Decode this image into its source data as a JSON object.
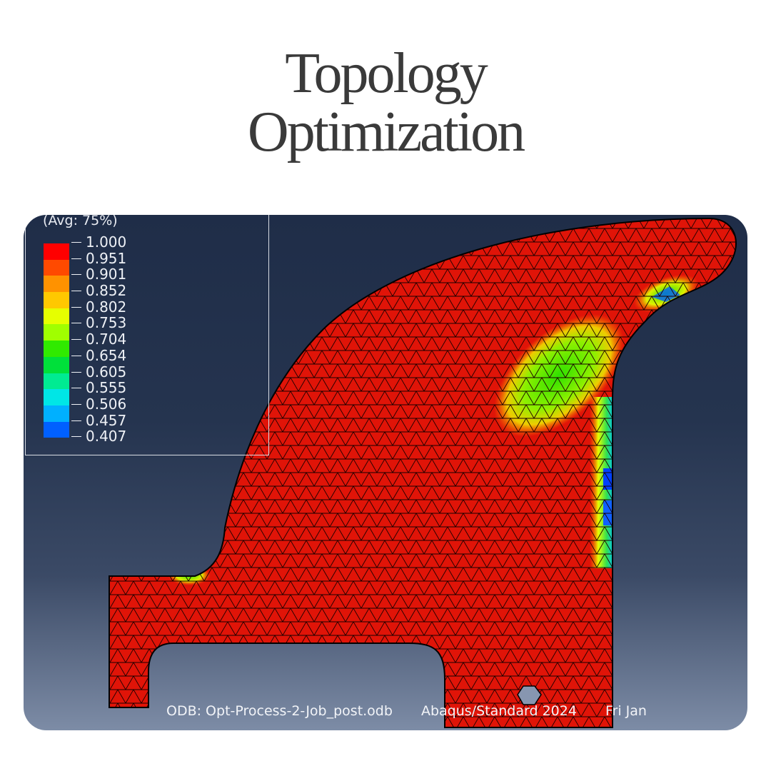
{
  "page": {
    "title_line1": "Topology",
    "title_line2": "Optimization"
  },
  "legend": {
    "title": "(Avg: 75%)",
    "ticks": [
      "1.000",
      "0.951",
      "0.901",
      "0.852",
      "0.802",
      "0.753",
      "0.704",
      "0.654",
      "0.605",
      "0.555",
      "0.506",
      "0.457",
      "0.407"
    ],
    "colors": [
      "#ff0000",
      "#ff4a00",
      "#ff9200",
      "#ffc800",
      "#e6ff00",
      "#a0ff00",
      "#30ea00",
      "#00e03a",
      "#00eb92",
      "#00e6e6",
      "#00b0ff",
      "#0060ff",
      "#0000ff"
    ]
  },
  "footer": {
    "odb": "ODB: Opt-Process-2-Job_post.odb",
    "solver": "Abaqus/Standard 2024",
    "date": "Fri Jan"
  },
  "model": {
    "fill_color": "#e01408",
    "mesh_color": "#1a0000",
    "outline_color": "#000000"
  }
}
